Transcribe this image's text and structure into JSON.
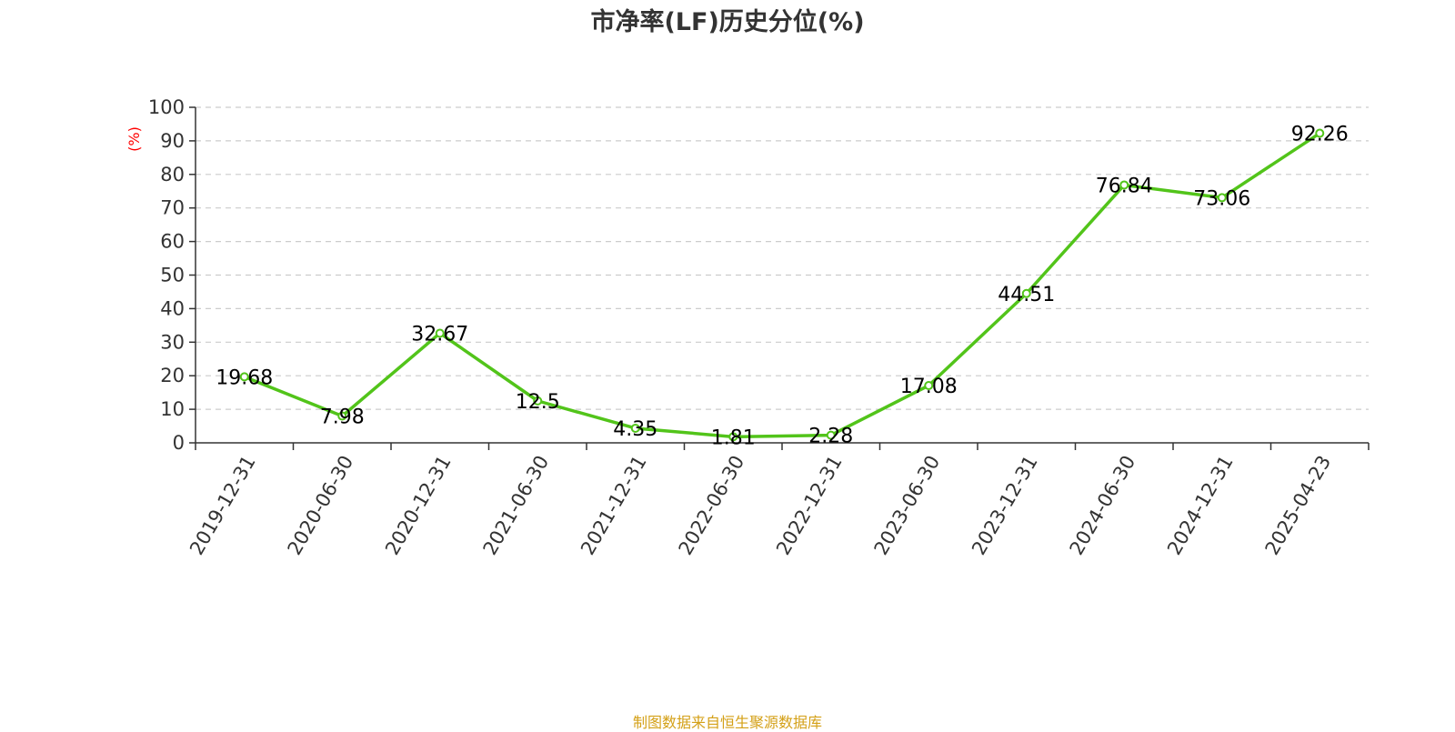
{
  "chart_data": {
    "type": "line",
    "title": "市净率(LF)历史分位(%)",
    "ylabel": "(%)",
    "xlabel": "",
    "ylim": [
      0,
      100
    ],
    "yticks": [
      "0",
      "10",
      "20",
      "30",
      "40",
      "50",
      "60",
      "70",
      "80",
      "90",
      "100"
    ],
    "categories": [
      "2019-12-31",
      "2020-06-30",
      "2020-12-31",
      "2021-06-30",
      "2021-12-31",
      "2022-06-30",
      "2022-12-31",
      "2023-06-30",
      "2023-12-31",
      "2024-06-30",
      "2024-12-31",
      "2025-04-23"
    ],
    "series": [
      {
        "values": [
          19.68,
          7.98,
          32.67,
          12.5,
          4.35,
          1.81,
          2.28,
          17.08,
          44.51,
          76.84,
          73.06,
          92.26
        ],
        "labels": [
          "19.68",
          "7.98",
          "32.67",
          "12.5",
          "4.35",
          "1.81",
          "2.28",
          "17.08",
          "44.51",
          "76.84",
          "73.06",
          "92.26"
        ]
      }
    ],
    "grid": true,
    "legend": "none"
  },
  "source_text": "制图数据来自恒生聚源数据库",
  "colors": {
    "line": "#52c41a",
    "ylabel": "#ff0000",
    "source": "#d4a017",
    "grid": "#cccccc",
    "axis": "#333333"
  }
}
